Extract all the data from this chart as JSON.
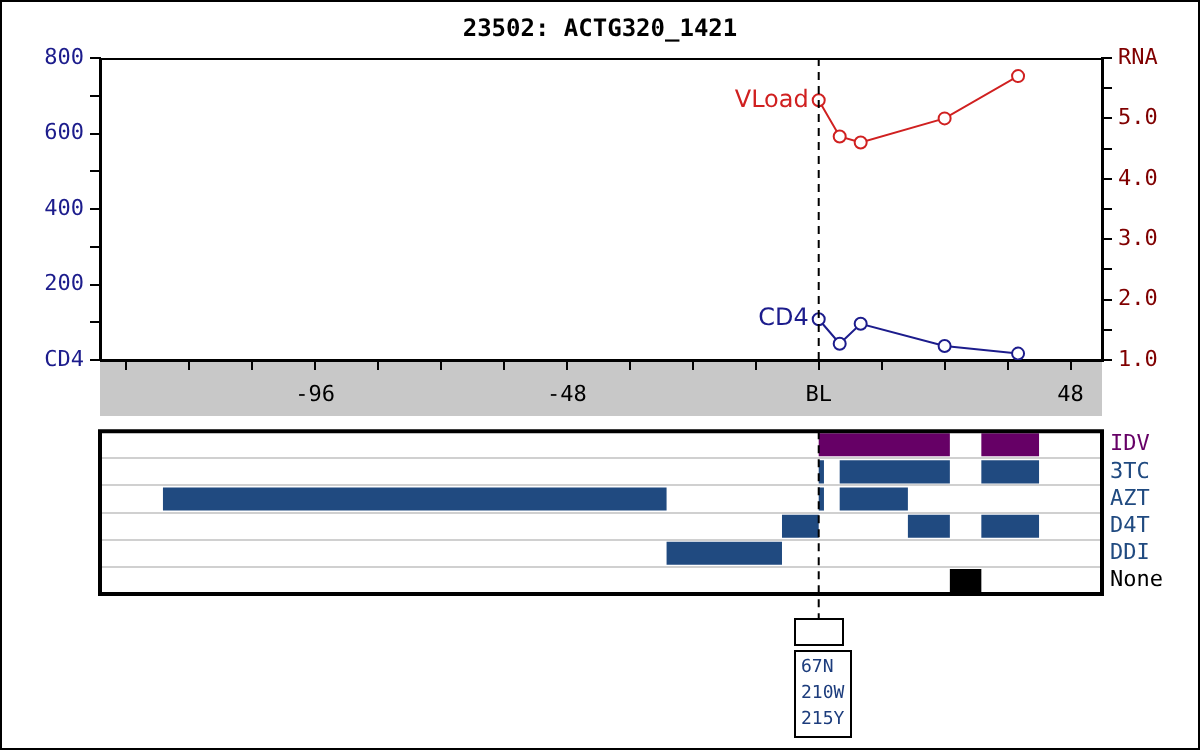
{
  "chart_data": [
    {
      "type": "line",
      "title": "23502: ACTG320_1421",
      "xlim": [
        -137,
        54
      ],
      "xticks": [
        {
          "value": -132,
          "label": null
        },
        {
          "value": -120,
          "label": null
        },
        {
          "value": -108,
          "label": null
        },
        -96,
        {
          "value": -84,
          "label": null
        },
        {
          "value": -72,
          "label": null
        },
        {
          "value": -60,
          "label": null
        },
        -48,
        {
          "value": -36,
          "label": null
        },
        {
          "value": -24,
          "label": null
        },
        {
          "value": -12,
          "label": null
        },
        {
          "value": 0,
          "label": "BL"
        },
        {
          "value": 12,
          "label": null
        },
        {
          "value": 24,
          "label": null
        },
        {
          "value": 36,
          "label": null
        },
        48
      ],
      "ylim": [
        0,
        800
      ],
      "yticks": [
        {
          "value": 0,
          "label": "CD4"
        },
        {
          "value": 100,
          "label": null
        },
        200,
        {
          "value": 300,
          "label": null
        },
        400,
        {
          "value": 500,
          "label": null
        },
        600,
        {
          "value": 700,
          "label": null
        },
        800
      ],
      "y2lim": [
        1,
        6
      ],
      "y2ticks": [
        {
          "value": 1,
          "label": "1.0"
        },
        {
          "value": 1.5,
          "label": null
        },
        {
          "value": 2,
          "label": "2.0"
        },
        {
          "value": 2.5,
          "label": null
        },
        {
          "value": 3,
          "label": "3.0"
        },
        {
          "value": 3.5,
          "label": null
        },
        {
          "value": 4,
          "label": "4.0"
        },
        {
          "value": 4.5,
          "label": null
        },
        {
          "value": 5,
          "label": "5.0"
        },
        {
          "value": 5.5,
          "label": null
        },
        {
          "value": 6,
          "label": "RNA"
        }
      ],
      "marker": "circle",
      "legend": false,
      "grid": false,
      "ref_lines": [
        {
          "axis": "x",
          "value": 0,
          "line_style": "dashed",
          "color": "#000000"
        }
      ],
      "series": [
        {
          "name": "CD4",
          "color": "#1c1c8c",
          "x": [
            0,
            4,
            8,
            24,
            38
          ],
          "values": [
            108,
            43,
            96,
            37,
            17
          ]
        },
        {
          "name": "VLoad",
          "color": "#d02020",
          "axis": "y2",
          "x": [
            0,
            4,
            8,
            24,
            38
          ],
          "values": [
            5.3,
            4.7,
            4.6,
            5.0,
            5.7
          ]
        }
      ]
    },
    {
      "type": "bar",
      "orientation": "horizontal",
      "categories": [
        "IDV",
        "3TC",
        "AZT",
        "D4T",
        "DDI",
        "None"
      ],
      "xlim": [
        -137,
        54
      ],
      "tick_labels": "y",
      "grid": "y",
      "legend": false,
      "ref_lines": [
        {
          "axis": "x",
          "value": 0,
          "line_style": "dashed",
          "color": "#000000"
        }
      ],
      "annotations": [
        "67N",
        "210W",
        "215Y"
      ],
      "series": [
        {
          "base": [
            0,
            0,
            -125,
            -7,
            -29,
            25
          ],
          "values": [
            25,
            1,
            96,
            7,
            22,
            6
          ],
          "colors": [
            "#660066",
            "#204a80",
            "#204a80",
            "#204a80",
            "#204a80",
            "#000000"
          ]
        },
        {
          "base": [
            31,
            4,
            0,
            17,
            null,
            null
          ],
          "values": [
            11,
            21,
            1,
            8,
            null,
            null
          ],
          "colors": [
            "#660066",
            "#204a80",
            "#204a80",
            "#204a80",
            "#204a80",
            "#000000"
          ]
        },
        {
          "base": [
            null,
            31,
            4,
            31,
            null,
            null
          ],
          "values": [
            null,
            11,
            13,
            11,
            null,
            null
          ],
          "colors": [
            "#660066",
            "#204a80",
            "#204a80",
            "#204a80",
            "#204a80",
            "#000000"
          ]
        }
      ]
    }
  ]
}
